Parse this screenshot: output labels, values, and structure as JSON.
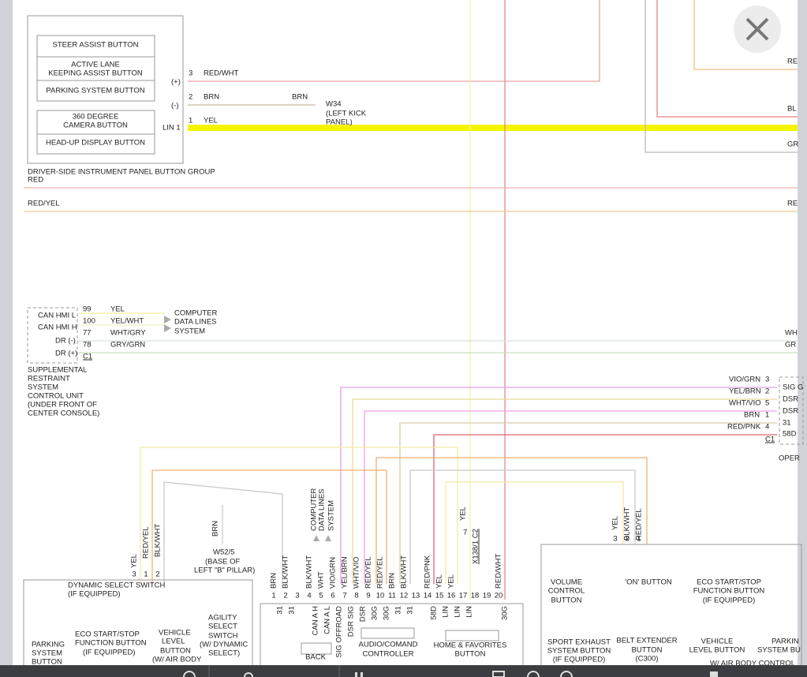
{
  "button_group": {
    "buttons": [
      "STEER ASSIST BUTTON",
      "ACTIVE LANE",
      "KEEPING ASSIST BUTTON",
      "PARKING SYSTEM BUTTON",
      "360 DEGREE",
      "CAMERA BUTTON",
      "HEAD-UP DISPLAY BUTTON"
    ],
    "pins": [
      "(+)",
      "(-)",
      "LIN 1",
      "3",
      "2",
      "1"
    ],
    "wires": [
      "RED/WHT",
      "BRN",
      "BRN",
      "YEL"
    ],
    "ground": [
      "W34",
      "(LEFT KICK",
      "PANEL)"
    ],
    "caption": [
      "DRIVER-SIDE INSTRUMENT PANEL BUTTON GROUP",
      "RED",
      "RED/YEL"
    ],
    "edge": [
      "RE",
      "BL",
      "GR",
      "RE",
      "WH",
      "GR"
    ]
  },
  "srs": {
    "pins": [
      "CAN HMI L",
      "CAN HMI H",
      "DR (-)",
      "DR (+)"
    ],
    "numbers": [
      "99",
      "100",
      "77",
      "78",
      "C1"
    ],
    "wires": [
      "YEL",
      "YEL/WHT",
      "WHT/GRY",
      "GRY/GRN"
    ],
    "target": [
      "COMPUTER",
      "DATA LINES",
      "SYSTEM"
    ],
    "caption": [
      "SUPPLEMENTAL",
      "RESTRAINT",
      "SYSTEM",
      "CONTROL UNIT",
      "(UNDER FRONT OF",
      "CENTER CONSOLE)"
    ]
  },
  "right_connector": {
    "wires": [
      "VIO/GRN",
      "YEL/BRN",
      "WHT/VIO",
      "BRN",
      "RED/PNK"
    ],
    "numbers": [
      "3",
      "2",
      "5",
      "1",
      "4",
      "C1"
    ],
    "pins": [
      "SIG G",
      "DSR",
      "DSR",
      "31",
      "58D",
      "OPER"
    ]
  },
  "left_switches": {
    "wires": [
      "YEL",
      "RED/YEL",
      "BLK/WHT"
    ],
    "numbers": [
      "3",
      "1",
      "2"
    ],
    "title": [
      "DYNAMIC SELECT SWITCH",
      "(IF EQUIPPED)"
    ],
    "labels": [
      "PARKING",
      "SYSTEM",
      "BUTTON",
      "ECO START/STOP",
      "FUNCTION BUTTON",
      "(IF EQUIPPED)",
      "VEHICLE",
      "LEVEL",
      "BUTTON",
      "(W/ AIR BODY",
      "AGILITY",
      "SELECT",
      "SWITCH",
      "(W/ DYNAMIC",
      "SELECT)"
    ]
  },
  "ground_w52": [
    "BRN",
    "W52/5",
    "(BASE OF",
    "LEFT \"B\" PILLAR)"
  ],
  "controller": {
    "numbers": [
      "1",
      "2",
      "3",
      "4",
      "5",
      "6",
      "7",
      "8",
      "9",
      "10",
      "11",
      "12",
      "13",
      "14",
      "15",
      "16",
      "17",
      "18",
      "19",
      "20"
    ],
    "wires": [
      "BRN",
      "BLK/WHT",
      "BLK/WHT",
      "WHT",
      "VIO/GRN",
      "YEL/BRN",
      "WHT/VIO",
      "RED/YEL",
      "RED/YEL",
      "BRN",
      "BLK/WHT",
      "RED/PNK",
      "YEL",
      "YEL",
      "RED/WHT"
    ],
    "pins": [
      "31",
      "31",
      "CAN A H",
      "CAN A L",
      "SIG OFFROAD",
      "DSR SIG",
      "DSR",
      "30G",
      "30G",
      "31",
      "31",
      "58D",
      "LIN",
      "LIN",
      "LIN",
      "30G"
    ],
    "data_lines": [
      "COMPUTER",
      "DATA LINES",
      "SYSTEM"
    ],
    "connector": [
      "7",
      "YEL",
      "X138/1 C2"
    ],
    "boxes": [
      "BACK",
      "AUDIO/COMAND",
      "CONTROLLER",
      "HOME & FAVORITES",
      "BUTTON"
    ]
  },
  "right_switches": {
    "wires": [
      "YEL",
      "BLK/WHT",
      "RED/YEL"
    ],
    "numbers": [
      "3",
      "2",
      "1"
    ],
    "labels": [
      "VOLUME",
      "CONTROL",
      "BUTTON",
      "'ON' BUTTON",
      "ECO START/STOP",
      "FUNCTION BUTTON",
      "(IF EQUIPPED)",
      "SPORT EXHAUST",
      "SYSTEM BUTTON",
      "(IF EQUIPPED)",
      "BELT EXTENDER",
      "BUTTON",
      "(C300)",
      "VEHICLE",
      "LEVEL BUTTON",
      "PARKIN",
      "SYSTEM BU",
      "W/ AIR BODY CONTROL"
    ]
  }
}
